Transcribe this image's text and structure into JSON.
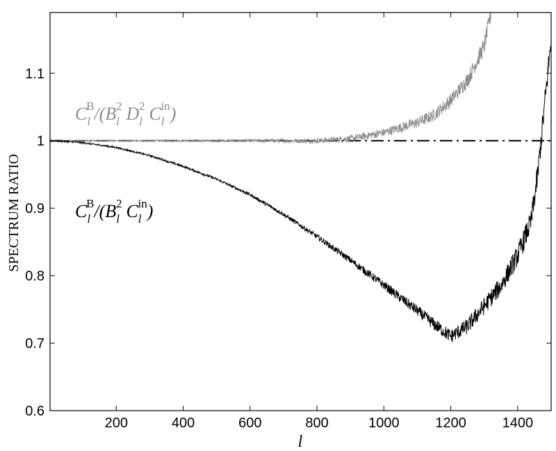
{
  "chart_data": {
    "type": "line",
    "title": "",
    "xlabel": "l",
    "ylabel": "SPECTRUM RATIO",
    "xlim": [
      2,
      1500
    ],
    "ylim": [
      0.6,
      1.19
    ],
    "xticks": [
      200,
      400,
      600,
      800,
      1000,
      1200,
      1400
    ],
    "yticks": [
      0.6,
      0.7,
      0.8,
      0.9,
      1,
      1.1
    ],
    "ytick_labels": [
      "0.6",
      "0.7",
      "0.8",
      "0.9",
      "1",
      "1.1"
    ],
    "grid": false,
    "colors": {
      "gray_series": "#8c8c8c",
      "black_series": "#000000",
      "reference": "#000000"
    },
    "reference_line": {
      "y": 1,
      "style": "dash-dot"
    },
    "series": [
      {
        "color": "#8c8c8c",
        "noise": "increasing",
        "x": [
          2,
          200,
          400,
          600,
          800,
          900,
          1000,
          1100,
          1150,
          1200,
          1250,
          1300,
          1320
        ],
        "y": [
          1.0,
          1.0,
          1.0,
          1.0,
          1.0,
          1.003,
          1.012,
          1.027,
          1.038,
          1.06,
          1.09,
          1.14,
          1.19
        ]
      },
      {
        "color": "#000000",
        "noise": "increasing",
        "x": [
          2,
          50,
          100,
          200,
          300,
          400,
          500,
          600,
          700,
          800,
          900,
          1000,
          1100,
          1150,
          1200,
          1250,
          1300,
          1350,
          1400,
          1440,
          1460,
          1480,
          1500
        ],
        "y": [
          1.0,
          0.999,
          0.997,
          0.99,
          0.978,
          0.962,
          0.943,
          0.92,
          0.891,
          0.858,
          0.823,
          0.786,
          0.748,
          0.728,
          0.71,
          0.725,
          0.755,
          0.785,
          0.83,
          0.88,
          0.95,
          1.05,
          1.15
        ]
      }
    ],
    "annotations": [
      {
        "base": "C",
        "sub": "l",
        "sup": "B",
        "rest": "/(",
        "base2": "B",
        "sub2": "l",
        "sup2": "2",
        "base3": "D",
        "sub3": "l",
        "sup3": "2",
        "base4": "C",
        "sub4": "l",
        "sup4": "in",
        "close": ")"
      },
      {
        "base": "C",
        "sub": "l",
        "sup": "B",
        "rest": "/(",
        "base2": "B",
        "sub2": "l",
        "sup2": "2",
        "base4": "C",
        "sub4": "l",
        "sup4": "in",
        "close": ")"
      }
    ]
  }
}
